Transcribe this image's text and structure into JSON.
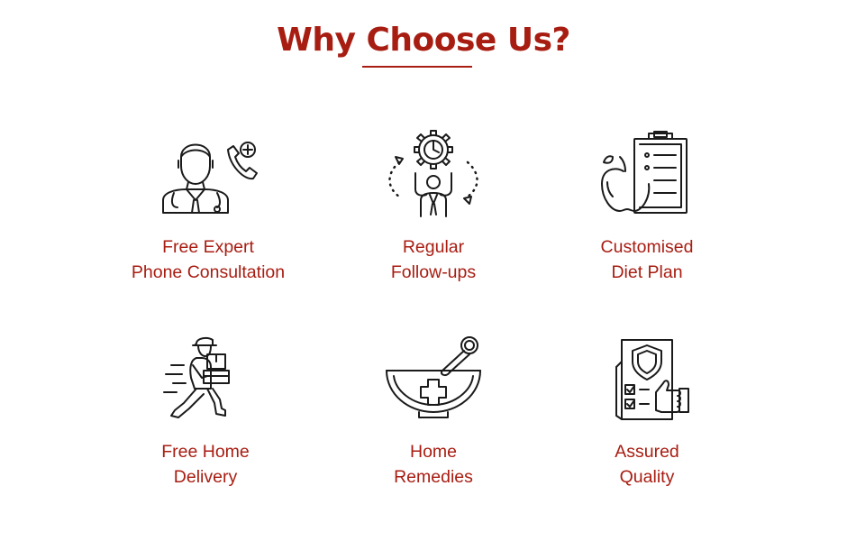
{
  "header": {
    "title": "Why Choose Us?"
  },
  "colors": {
    "accent": "#a81d12",
    "icon_stroke": "#1a1a1a",
    "background": "#ffffff"
  },
  "features": [
    {
      "icon": "doctor-phone-icon",
      "line1": "Free Expert",
      "line2": "Phone Consultation"
    },
    {
      "icon": "gear-follow-up-icon",
      "line1": "Regular",
      "line2": "Follow-ups"
    },
    {
      "icon": "diet-clipboard-icon",
      "line1": "Customised",
      "line2": "Diet Plan"
    },
    {
      "icon": "delivery-man-icon",
      "line1": "Free Home",
      "line2": "Delivery"
    },
    {
      "icon": "mortar-pestle-icon",
      "line1": "Home",
      "line2": "Remedies"
    },
    {
      "icon": "quality-checklist-icon",
      "line1": "Assured",
      "line2": "Quality"
    }
  ]
}
